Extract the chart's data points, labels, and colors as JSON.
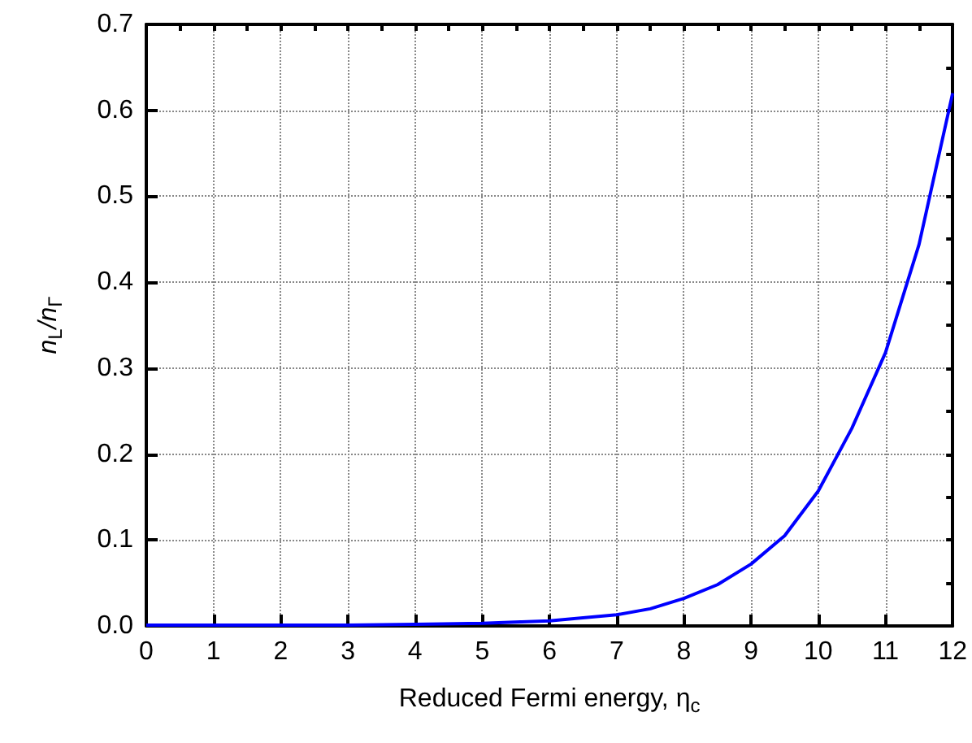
{
  "chart_data": {
    "type": "line",
    "xlabel": "Reduced Fermi energy, η$_{c}$",
    "ylabel": "n$_{L}$/n$_{Γ}$",
    "x": [
      0,
      1,
      2,
      3,
      4,
      5,
      6,
      7,
      7.5,
      8,
      8.5,
      9,
      9.5,
      10,
      10.5,
      11,
      11.5,
      12
    ],
    "series": [
      {
        "color": "#0000ff",
        "values": [
          0.001,
          0.001,
          0.001,
          0.001,
          0.002,
          0.003,
          0.006,
          0.013,
          0.02,
          0.032,
          0.048,
          0.072,
          0.105,
          0.157,
          0.23,
          0.318,
          0.444,
          0.62
        ]
      }
    ],
    "xlim": [
      0,
      12
    ],
    "xticks": [
      0,
      1,
      2,
      3,
      4,
      5,
      6,
      7,
      8,
      9,
      10,
      11,
      12
    ],
    "ylim": [
      0,
      0.7
    ],
    "yticks": [
      {
        "value": 0,
        "label": "0.0"
      },
      0.1,
      0.2,
      0.3,
      0.4,
      0.5,
      0.6,
      0.7
    ],
    "grid": true,
    "marker": "none",
    "line_style": "solid"
  }
}
